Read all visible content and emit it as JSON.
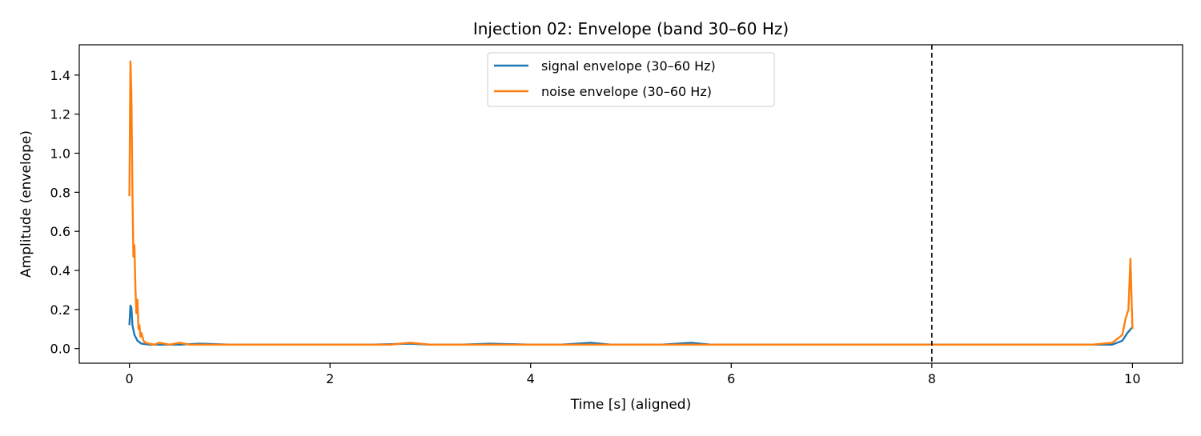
{
  "chart_data": {
    "type": "line",
    "title": "Injection 02: Envelope (band 30–60 Hz)",
    "xlabel": "Time [s] (aligned)",
    "ylabel": "Amplitude (envelope)",
    "xlim": [
      -0.5,
      10.5
    ],
    "ylim": [
      -0.075,
      1.555
    ],
    "xticks": [
      0,
      2,
      4,
      6,
      8,
      10
    ],
    "yticks": [
      0.0,
      0.2,
      0.4,
      0.6,
      0.8,
      1.0,
      1.2,
      1.4
    ],
    "xtick_labels": [
      "0",
      "2",
      "4",
      "6",
      "8",
      "10"
    ],
    "ytick_labels": [
      "0.0",
      "0.2",
      "0.4",
      "0.6",
      "0.8",
      "1.0",
      "1.2",
      "1.4"
    ],
    "grid": false,
    "legend_position": "upper center",
    "vertical_line": {
      "x": 8,
      "style": "dashed",
      "color": "#000000"
    },
    "series": [
      {
        "name": "signal envelope (30–60 Hz)",
        "color": "#1f77b4",
        "x": [
          0.0,
          0.01,
          0.02,
          0.03,
          0.05,
          0.08,
          0.12,
          0.2,
          0.3,
          0.5,
          0.7,
          1.0,
          1.3,
          1.6,
          2.0,
          2.4,
          2.8,
          3.0,
          3.3,
          3.6,
          4.0,
          4.3,
          4.6,
          4.8,
          5.0,
          5.3,
          5.6,
          5.8,
          6.0,
          6.3,
          6.6,
          7.0,
          7.3,
          7.6,
          8.0,
          8.1,
          8.4,
          8.8,
          9.0,
          9.3,
          9.6,
          9.8,
          9.9,
          9.95,
          10.0
        ],
        "y": [
          0.12,
          0.22,
          0.21,
          0.12,
          0.07,
          0.04,
          0.025,
          0.02,
          0.02,
          0.02,
          0.025,
          0.02,
          0.02,
          0.02,
          0.02,
          0.02,
          0.025,
          0.02,
          0.02,
          0.025,
          0.02,
          0.02,
          0.03,
          0.02,
          0.02,
          0.02,
          0.03,
          0.02,
          0.02,
          0.02,
          0.02,
          0.02,
          0.02,
          0.02,
          0.02,
          0.02,
          0.02,
          0.02,
          0.02,
          0.02,
          0.02,
          0.02,
          0.04,
          0.08,
          0.11
        ]
      },
      {
        "name": "noise envelope (30–60 Hz)",
        "color": "#ff7f0e",
        "x": [
          0.0,
          0.01,
          0.02,
          0.03,
          0.04,
          0.05,
          0.06,
          0.07,
          0.08,
          0.09,
          0.1,
          0.11,
          0.12,
          0.14,
          0.16,
          0.2,
          0.25,
          0.3,
          0.4,
          0.5,
          0.6,
          0.8,
          1.0,
          1.2,
          1.5,
          1.8,
          2.0,
          2.3,
          2.6,
          2.8,
          3.0,
          3.3,
          3.6,
          4.0,
          4.3,
          4.6,
          5.0,
          5.3,
          5.6,
          6.0,
          6.3,
          6.6,
          7.0,
          7.3,
          7.6,
          8.0,
          8.3,
          8.6,
          9.0,
          9.3,
          9.6,
          9.8,
          9.9,
          9.93,
          9.96,
          9.98,
          10.0
        ],
        "y": [
          0.78,
          1.47,
          1.3,
          0.8,
          0.47,
          0.53,
          0.3,
          0.18,
          0.25,
          0.1,
          0.12,
          0.06,
          0.08,
          0.04,
          0.03,
          0.025,
          0.02,
          0.03,
          0.02,
          0.03,
          0.02,
          0.02,
          0.02,
          0.02,
          0.02,
          0.02,
          0.02,
          0.02,
          0.02,
          0.03,
          0.02,
          0.02,
          0.02,
          0.02,
          0.02,
          0.02,
          0.02,
          0.02,
          0.02,
          0.02,
          0.02,
          0.02,
          0.02,
          0.02,
          0.02,
          0.02,
          0.02,
          0.02,
          0.02,
          0.02,
          0.02,
          0.03,
          0.07,
          0.15,
          0.2,
          0.46,
          0.1
        ]
      }
    ]
  }
}
